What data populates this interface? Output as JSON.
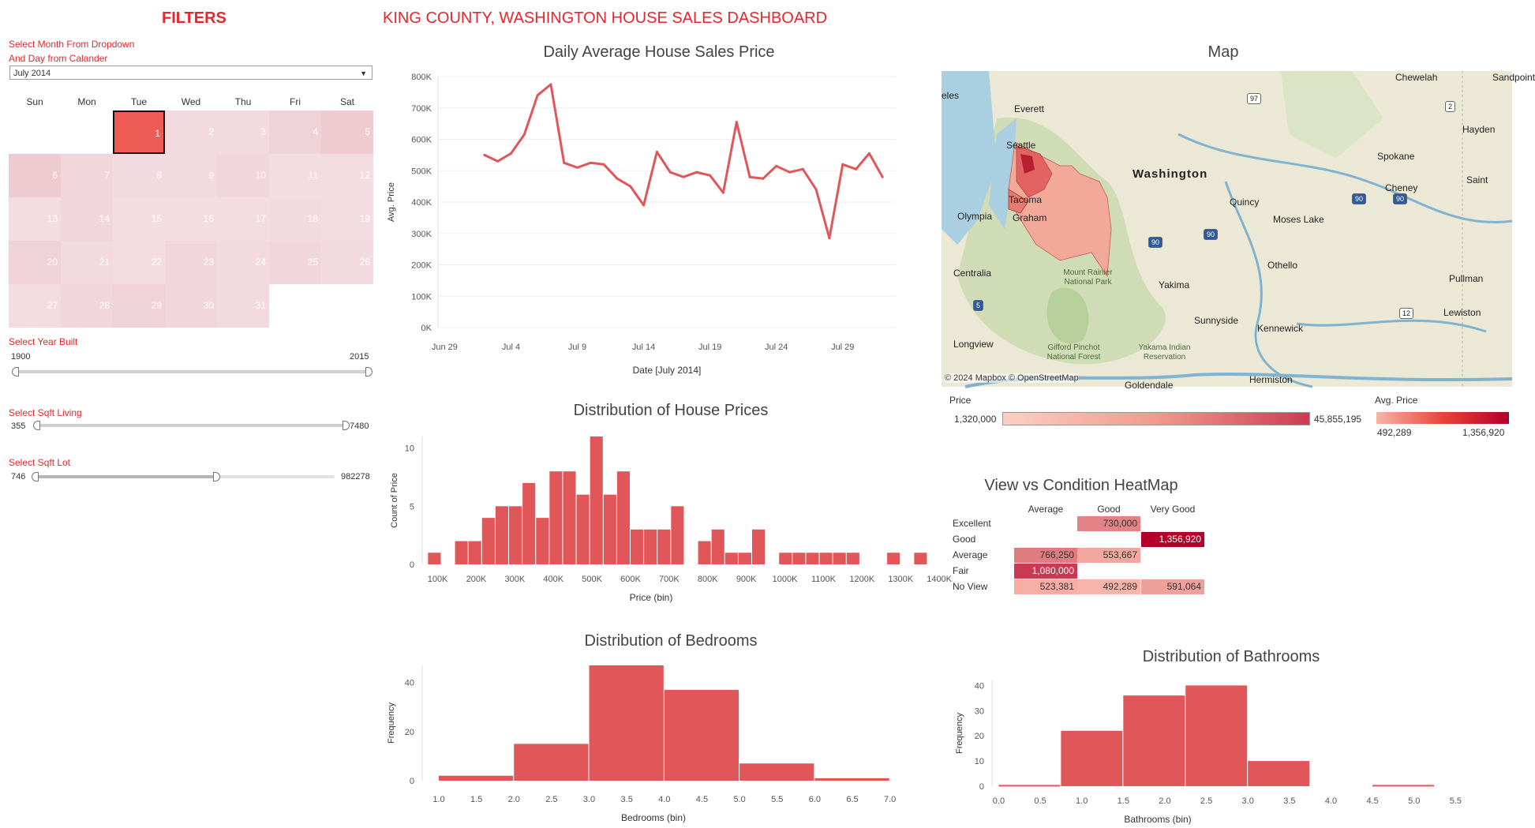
{
  "filters": {
    "title": "FILTERS",
    "month_label_1": "Select Month From Dropdown",
    "month_label_2": "And Day from Calander",
    "month_value": "July 2014",
    "calendar": {
      "days": [
        "Sun",
        "Mon",
        "Tue",
        "Wed",
        "Thu",
        "Fri",
        "Sat"
      ],
      "selected_day": 1,
      "weeks": [
        [
          "",
          "",
          "1",
          "2",
          "3",
          "4",
          "5"
        ],
        [
          "6",
          "7",
          "8",
          "9",
          "10",
          "11",
          "12"
        ],
        [
          "13",
          "14",
          "15",
          "16",
          "17",
          "18",
          "19"
        ],
        [
          "20",
          "21",
          "22",
          "23",
          "24",
          "25",
          "26"
        ],
        [
          "27",
          "28",
          "29",
          "30",
          "31",
          "",
          ""
        ]
      ],
      "intensity": [
        [
          null,
          null,
          1.0,
          0.2,
          0.2,
          0.3,
          0.45
        ],
        [
          0.45,
          0.25,
          0.2,
          0.2,
          0.25,
          0.15,
          0.15
        ],
        [
          0.15,
          0.25,
          0.15,
          0.15,
          0.15,
          0.2,
          0.15
        ],
        [
          0.3,
          0.2,
          0.15,
          0.25,
          0.2,
          0.25,
          0.2
        ],
        [
          0.15,
          0.25,
          0.3,
          0.25,
          0.2,
          null,
          null
        ]
      ]
    },
    "year_built": {
      "label": "Select Year Built",
      "min": "1900",
      "max": "2015"
    },
    "sqft_living": {
      "label": "Select Sqft Living",
      "min": "355",
      "max": "7480"
    },
    "sqft_lot": {
      "label": "Select Sqft Lot",
      "min": "746",
      "max": "982278"
    }
  },
  "dashboard_title": "KING COUNTY, WASHINGTON HOUSE SALES DASHBOARD",
  "colors": {
    "accent": "#e8262b",
    "bar": "#e15759"
  },
  "line_chart": {
    "title": "Daily Average House Sales Price",
    "xlabel": "Date [July 2014]",
    "ylabel": "Avg. Price"
  },
  "price_hist": {
    "title": "Distribution of House Prices",
    "xlabel": "Price (bin)",
    "ylabel": "Count of Price"
  },
  "bed_hist": {
    "title": "Distribution of Bedrooms",
    "xlabel": "Bedrooms (bin)",
    "ylabel": "Frequency"
  },
  "bath_hist": {
    "title": "Distribution of Bathrooms",
    "xlabel": "Bathrooms (bin)",
    "ylabel": "Frequency"
  },
  "map": {
    "title": "Map",
    "attribution": "© 2024 Mapbox © OpenStreetMap",
    "places": [
      "Everett",
      "Seattle",
      "Tacoma",
      "Olympia",
      "Graham",
      "Centralia",
      "Longview",
      "Mount Rainier National Park",
      "Gifford Pinchot National Forest",
      "Yakama Indian Reservation",
      "Yakima",
      "Sunnyside",
      "Kennewick",
      "Hermiston",
      "Goldendale",
      "Othello",
      "Moses Lake",
      "Quincy",
      "Washington",
      "Spokane",
      "Cheney",
      "Pullman",
      "Lewiston",
      "Chewelah",
      "Hayden",
      "Saint",
      "Sandpoint",
      "eles"
    ],
    "routes": [
      "97",
      "2",
      "90",
      "90",
      "90",
      "90",
      "5",
      "12"
    ],
    "legend_price": {
      "label": "Price",
      "min": "1,320,000",
      "max": "45,855,195"
    },
    "legend_avg": {
      "label": "Avg. Price",
      "min": "492,289",
      "max": "1,356,920"
    }
  },
  "heatmap": {
    "title": "View vs Condition HeatMap",
    "columns": [
      "Average",
      "Good",
      "Very Good"
    ],
    "rows": [
      {
        "label": "Excellent",
        "cells": [
          "",
          "730,000",
          ""
        ]
      },
      {
        "label": "Good",
        "cells": [
          "",
          "",
          "1,356,920"
        ]
      },
      {
        "label": "Average",
        "cells": [
          "766,250",
          "553,667",
          ""
        ]
      },
      {
        "label": "Fair",
        "cells": [
          "1,080,000",
          "",
          ""
        ]
      },
      {
        "label": "No View",
        "cells": [
          "523,381",
          "492,289",
          "591,064"
        ]
      }
    ],
    "values": [
      [
        null,
        730000,
        null
      ],
      [
        null,
        null,
        1356920
      ],
      [
        766250,
        553667,
        null
      ],
      [
        1080000,
        null,
        null
      ],
      [
        523381,
        492289,
        591064
      ]
    ]
  },
  "chart_data": [
    {
      "type": "line",
      "title": "Daily Average House Sales Price",
      "xlabel": "Date [July 2014]",
      "ylabel": "Avg. Price",
      "x_ticks": [
        "Jun 29",
        "Jul 4",
        "Jul 9",
        "Jul 14",
        "Jul 19",
        "Jul 24",
        "Jul 29"
      ],
      "x_tick_values": [
        -2,
        3,
        8,
        13,
        18,
        23,
        28
      ],
      "y_ticks": [
        "0K",
        "100K",
        "200K",
        "300K",
        "400K",
        "500K",
        "600K",
        "700K",
        "800K"
      ],
      "ylim": [
        0,
        800000
      ],
      "x": [
        1,
        2,
        3,
        4,
        5,
        6,
        7,
        8,
        9,
        10,
        11,
        12,
        13,
        14,
        15,
        16,
        17,
        18,
        19,
        20,
        21,
        22,
        23,
        24,
        25,
        26,
        27,
        28,
        29,
        30,
        31
      ],
      "values": [
        550000,
        530000,
        555000,
        615000,
        740000,
        775000,
        525000,
        510000,
        525000,
        520000,
        475000,
        450000,
        390000,
        560000,
        495000,
        480000,
        495000,
        485000,
        430000,
        655000,
        480000,
        475000,
        515000,
        495000,
        505000,
        440000,
        285000,
        520000,
        505000,
        555000,
        480000
      ]
    },
    {
      "type": "bar",
      "title": "Distribution of House Prices",
      "xlabel": "Price (bin)",
      "ylabel": "Count of Price",
      "x_ticks": [
        "100K",
        "200K",
        "300K",
        "400K",
        "500K",
        "600K",
        "700K",
        "800K",
        "900K",
        "1000K",
        "1100K",
        "1200K",
        "1300K",
        "1400K"
      ],
      "y_ticks": [
        "0",
        "5",
        "10"
      ],
      "ylim": [
        0,
        11
      ],
      "bin_width": 35000,
      "bins": [
        75000,
        110000,
        145000,
        180000,
        215000,
        250000,
        285000,
        320000,
        355000,
        390000,
        425000,
        460000,
        495000,
        530000,
        565000,
        600000,
        635000,
        670000,
        705000,
        740000,
        775000,
        810000,
        845000,
        880000,
        915000,
        950000,
        985000,
        1020000,
        1055000,
        1090000,
        1125000,
        1160000,
        1195000,
        1230000,
        1265000,
        1300000,
        1335000,
        1370000
      ],
      "values": [
        1,
        0,
        2,
        2,
        4,
        5,
        5,
        7,
        4,
        8,
        8,
        6,
        11,
        6,
        8,
        3,
        3,
        3,
        5,
        0,
        2,
        3,
        1,
        1,
        3,
        0,
        1,
        1,
        1,
        1,
        1,
        1,
        0,
        0,
        1,
        0,
        1,
        0
      ]
    },
    {
      "type": "bar",
      "title": "Distribution of Bedrooms",
      "xlabel": "Bedrooms (bin)",
      "ylabel": "Frequency",
      "x_ticks": [
        "1.0",
        "1.5",
        "2.0",
        "2.5",
        "3.0",
        "3.5",
        "4.0",
        "4.5",
        "5.0",
        "5.5",
        "6.0",
        "6.5",
        "7.0"
      ],
      "y_ticks": [
        "0",
        "20",
        "40"
      ],
      "ylim": [
        0,
        47
      ],
      "bins": [
        [
          1,
          2
        ],
        [
          2,
          3
        ],
        [
          3,
          4
        ],
        [
          4,
          5
        ],
        [
          5,
          6
        ],
        [
          6,
          7
        ]
      ],
      "values": [
        2,
        15,
        47,
        37,
        7,
        1
      ]
    },
    {
      "type": "bar",
      "title": "Distribution of Bathrooms",
      "xlabel": "Bathrooms (bin)",
      "ylabel": "Frequency",
      "x_ticks": [
        "0.0",
        "0.5",
        "1.0",
        "1.5",
        "2.0",
        "2.5",
        "3.0",
        "3.5",
        "4.0",
        "4.5",
        "5.0",
        "5.5"
      ],
      "y_ticks": [
        "0",
        "10",
        "20",
        "30",
        "40"
      ],
      "ylim": [
        0,
        42
      ],
      "bins": [
        [
          0,
          0.75
        ],
        [
          0.75,
          1.5
        ],
        [
          1.5,
          2.25
        ],
        [
          2.25,
          3.0
        ],
        [
          3.0,
          3.75
        ],
        [
          3.75,
          4.5
        ],
        [
          4.5,
          5.25
        ],
        [
          5.25,
          6
        ]
      ],
      "values": [
        0.5,
        22,
        36,
        40,
        10,
        0,
        0.5,
        0
      ]
    }
  ]
}
